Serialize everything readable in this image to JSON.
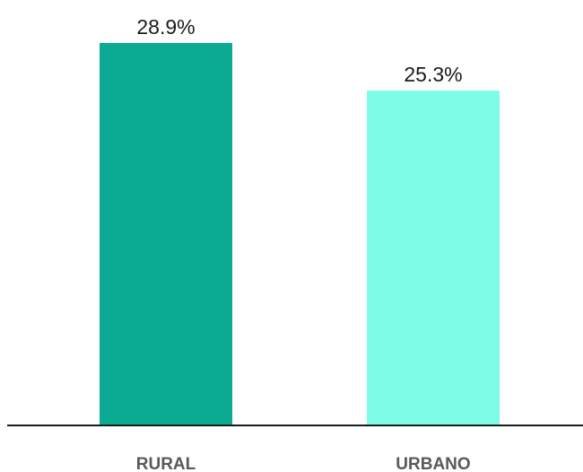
{
  "chart_data": {
    "type": "bar",
    "categories": [
      "RURAL",
      "URBANO"
    ],
    "values": [
      28.9,
      25.3
    ],
    "value_labels": [
      "28.9%",
      "25.3%"
    ],
    "colors": [
      "#0aab92",
      "#7ffce8"
    ],
    "title": "",
    "xlabel": "",
    "ylabel": "",
    "ylim": [
      0,
      28.9
    ],
    "grid": false,
    "legend": "none",
    "axis_color": "#1a1a1a"
  }
}
